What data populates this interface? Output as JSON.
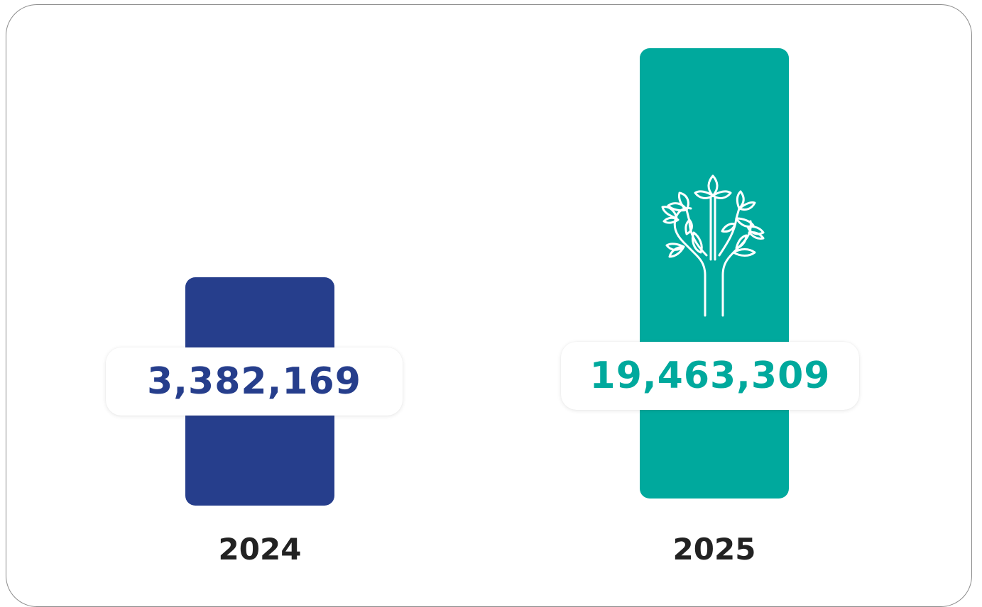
{
  "chart_data": {
    "type": "bar",
    "title": "",
    "categories": [
      "2024",
      "2025"
    ],
    "values": [
      3382169,
      19463309
    ],
    "value_labels": [
      "3,382,169",
      "19,463,309"
    ],
    "colors": [
      "#263e8c",
      "#00a99d"
    ],
    "xlabel": "",
    "ylabel": "",
    "grid": false,
    "axes_visible": false,
    "icons": [
      "",
      "tree-icon"
    ]
  }
}
